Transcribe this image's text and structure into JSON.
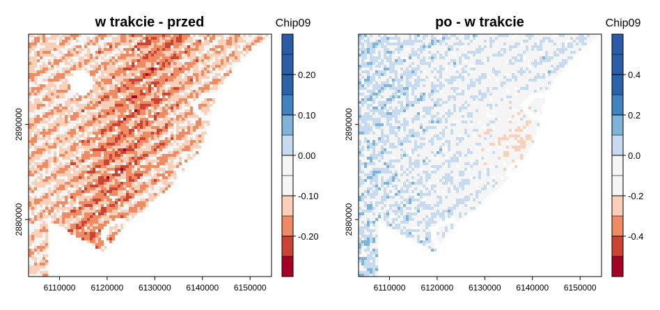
{
  "chart_data": [
    {
      "type": "heatmap",
      "title": "w trakcie - przed",
      "legend_title": "Chip09",
      "x_ticks": [
        6110000,
        6120000,
        6130000,
        6140000,
        6150000
      ],
      "y_ticks": [
        2880000,
        2890000
      ],
      "xlim": [
        6103500,
        6154500
      ],
      "ylim": [
        2874000,
        2899500
      ],
      "legend": {
        "breaks": [
          -0.3,
          -0.25,
          -0.2,
          -0.15,
          -0.1,
          -0.05,
          0.0,
          0.05,
          0.1,
          0.15,
          0.2,
          0.25,
          0.3
        ],
        "labels": [
          "-0.20",
          "-0.10",
          "0.00",
          "0.10",
          "0.20"
        ],
        "label_values": [
          -0.2,
          -0.1,
          0.0,
          0.1,
          0.2
        ],
        "colors": [
          "#a50026",
          "#cb4335",
          "#ef8a62",
          "#fccfb9",
          "#f5f5f5",
          "#f5f5f5",
          "#c6dbef",
          "#7fb3d8",
          "#3f84c0",
          "#2a63a8",
          "#2c5ea8",
          "#2a5ca8"
        ]
      },
      "pattern": "west_red"
    },
    {
      "type": "heatmap",
      "title": "po - w trakcie",
      "legend_title": "Chip09",
      "x_ticks": [
        6110000,
        6120000,
        6130000,
        6140000,
        6150000
      ],
      "y_ticks": [
        2880000,
        2890000
      ],
      "xlim": [
        6103500,
        6154500
      ],
      "ylim": [
        2874000,
        2899500
      ],
      "legend": {
        "breaks": [
          -0.6,
          -0.5,
          -0.4,
          -0.3,
          -0.2,
          -0.1,
          0.0,
          0.1,
          0.2,
          0.3,
          0.4,
          0.5,
          0.6
        ],
        "labels": [
          "-0.4",
          "-0.2",
          "0.0",
          "0.2",
          "0.4"
        ],
        "label_values": [
          -0.4,
          -0.2,
          0.0,
          0.2,
          0.4
        ],
        "colors": [
          "#a50026",
          "#cb4335",
          "#ef8a62",
          "#fccfb9",
          "#f5f5f5",
          "#f5f5f5",
          "#c6dbef",
          "#7fb3d8",
          "#3f84c0",
          "#2a63a8",
          "#2c5ea8",
          "#2a5ca8"
        ]
      },
      "pattern": "mixed"
    }
  ]
}
